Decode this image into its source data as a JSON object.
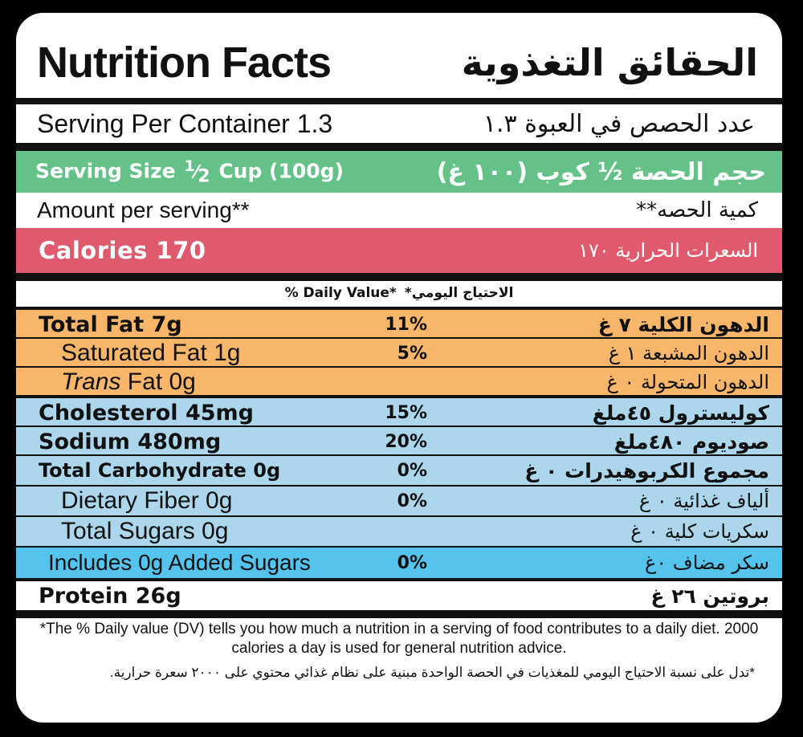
{
  "title": {
    "en": "Nutrition Facts",
    "ar": "الحقائق التغذوية"
  },
  "servings_per_container": {
    "en": "Serving Per Container 1.3",
    "ar": "عدد الحصص في العبوة ١.٣"
  },
  "serving_size": {
    "en_prefix": "Serving Size",
    "en_frac_num": "1",
    "en_frac_den": "2",
    "en_suffix": "Cup (100g)",
    "ar": "حجم الحصة ½ كوب (١٠٠ غ)"
  },
  "amount_per_serving": {
    "en": "Amount per serving**",
    "ar": "كمية الحصه**"
  },
  "calories": {
    "en": "Calories 170",
    "ar": "السعرات الحرارية ١٧٠"
  },
  "daily_value_header": {
    "en": "% Daily Value*",
    "ar": "الاحتياج اليومي*"
  },
  "nutrients": {
    "total_fat": {
      "en": "Total Fat 7g",
      "pct": "11%",
      "ar": "الدهون الكلية ٧ غ"
    },
    "saturated_fat": {
      "en": "Saturated Fat 1g",
      "pct": "5%",
      "ar": "الدهون المشبعة ١ غ"
    },
    "trans_fat": {
      "en_italic": "Trans",
      "en_rest": " Fat 0g",
      "pct": "",
      "ar": "الدهون المتحولة ٠ غ"
    },
    "cholesterol": {
      "en": "Cholesterol 45mg",
      "pct": "15%",
      "ar": "كوليسترول ٤٥ملغ"
    },
    "sodium": {
      "en": "Sodium 480mg",
      "pct": "20%",
      "ar": "صوديوم ٤٨٠ملغ"
    },
    "total_carbohydrate": {
      "en": "Total Carbohydrate 0g",
      "pct": "0%",
      "ar": "مجموع الكربوهيدرات ٠ غ"
    },
    "dietary_fiber": {
      "en": "Dietary Fiber 0g",
      "pct": "0%",
      "ar": "ألياف غذائية ٠ غ"
    },
    "total_sugars": {
      "en": "Total Sugars 0g",
      "pct": "",
      "ar": "سكريات كلية ٠ غ"
    },
    "added_sugars": {
      "en": "Includes 0g Added Sugars",
      "pct": "0%",
      "ar": "سكر مضاف ٠غ"
    },
    "protein": {
      "en": "Protein 26g",
      "pct": "",
      "ar": "بروتين ٢٦ غ"
    }
  },
  "footnote": {
    "en": "*The % Daily value (DV) tells you how much a nutrition in a serving of food contributes to a daily diet. 2000 calories a day is used for general nutrition advice.",
    "ar": "*تدل على نسبة الاحتياج اليومي للمغذيات في الحصة الواحدة مبنية على نظام غذائي محتوي على ٢٠٠٠ سعرة حرارية."
  },
  "colors": {
    "serving_size_bg": "#64c289",
    "calories_bg": "#e05a6e",
    "fat_bg": "#f7b66a",
    "cholesterol_carb_bg": "#abd6ec",
    "added_sugars_bg": "#54c4ee",
    "rule": "#111111"
  }
}
